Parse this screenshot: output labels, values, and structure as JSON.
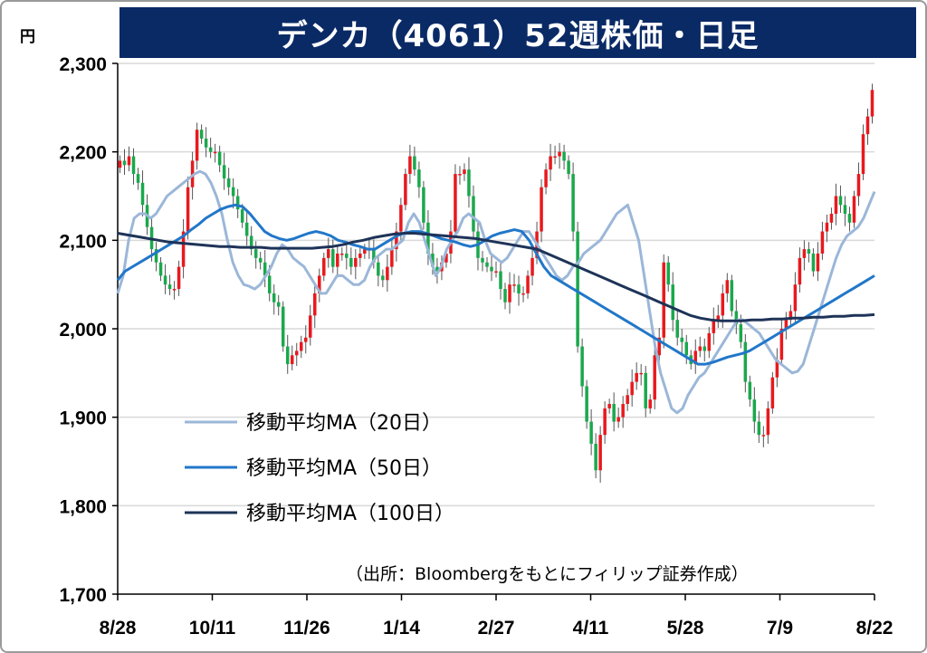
{
  "chart_data": {
    "type": "candlestick",
    "title": "デンカ（4061）52週株価・日足",
    "unit": "円",
    "source": "（出所：Bloombergをもとにフィリップ証券作成）",
    "ylim": [
      1700,
      2300
    ],
    "yticks": [
      1700,
      1800,
      1900,
      2000,
      2100,
      2200,
      2300
    ],
    "ytick_labels": [
      "1,700",
      "1,800",
      "1,900",
      "2,000",
      "2,100",
      "2,200",
      "2,300"
    ],
    "xticks": [
      "8/28",
      "10/11",
      "11/26",
      "1/14",
      "2/27",
      "4/11",
      "5/28",
      "7/9",
      "8/22"
    ],
    "colors": {
      "up": "#e8191e",
      "down": "#1aa84c",
      "grid": "#d9d9d9",
      "ma20": "#9bb7d8",
      "ma50": "#2177c9",
      "ma100": "#1e3358",
      "title_bg": "#0a2a66"
    },
    "candles_close": [
      2190,
      2185,
      2195,
      2175,
      2165,
      2140,
      2115,
      2090,
      2075,
      2060,
      2050,
      2045,
      2045,
      2070,
      2110,
      2160,
      2190,
      2225,
      2215,
      2205,
      2200,
      2200,
      2185,
      2170,
      2160,
      2150,
      2135,
      2120,
      2105,
      2090,
      2080,
      2075,
      2060,
      2040,
      2030,
      2025,
      1980,
      1960,
      1970,
      1975,
      1985,
      1990,
      2015,
      2040,
      2060,
      2080,
      2090,
      2070,
      2085,
      2085,
      2080,
      2070,
      2080,
      2085,
      2090,
      2090,
      2075,
      2060,
      2055,
      2070,
      2090,
      2110,
      2140,
      2175,
      2195,
      2180,
      2160,
      2120,
      2085,
      2070,
      2065,
      2075,
      2085,
      2110,
      2175,
      2175,
      2180,
      2150,
      2110,
      2080,
      2075,
      2070,
      2065,
      2065,
      2045,
      2030,
      2050,
      2050,
      2040,
      2040,
      2060,
      2080,
      2110,
      2160,
      2180,
      2195,
      2195,
      2200,
      2190,
      2175,
      2110,
      1980,
      1935,
      1895,
      1870,
      1840,
      1880,
      1910,
      1915,
      1895,
      1900,
      1915,
      1925,
      1940,
      1950,
      1950,
      1910,
      1920,
      1970,
      1990,
      2075,
      2050,
      2010,
      1990,
      1985,
      1970,
      1960,
      1975,
      1980,
      1975,
      1995,
      2010,
      2015,
      2040,
      2055,
      2020,
      2005,
      1985,
      1940,
      1920,
      1895,
      1880,
      1880,
      1910,
      1945,
      1965,
      2000,
      2010,
      2020,
      2050,
      2080,
      2090,
      2085,
      2065,
      2085,
      2110,
      2120,
      2130,
      2150,
      2140,
      2130,
      2120,
      2150,
      2175,
      2220,
      2240,
      2270
    ],
    "series": [
      {
        "name": "移動平均MA（20日）",
        "values": [
          2040,
          2060,
          2100,
          2125,
          2130,
          2130,
          2125,
          2130,
          2140,
          2150,
          2155,
          2160,
          2165,
          2170,
          2175,
          2178,
          2175,
          2165,
          2150,
          2130,
          2100,
          2075,
          2060,
          2050,
          2048,
          2045,
          2050,
          2060,
          2070,
          2085,
          2095,
          2090,
          2080,
          2075,
          2070,
          2060,
          2050,
          2040,
          2040,
          2050,
          2060,
          2060,
          2055,
          2050,
          2050,
          2055,
          2070,
          2080,
          2085,
          2090,
          2090,
          2095,
          2100,
          2120,
          2130,
          2120,
          2100,
          2080,
          2060,
          2070,
          2090,
          2100,
          2110,
          2125,
          2130,
          2125,
          2120,
          2100,
          2085,
          2080,
          2075,
          2080,
          2090,
          2100,
          2110,
          2110,
          2100,
          2090,
          2080,
          2070,
          2060,
          2055,
          2060,
          2070,
          2075,
          2085,
          2090,
          2095,
          2100,
          2110,
          2120,
          2130,
          2135,
          2140,
          2120,
          2100,
          2060,
          2020,
          1980,
          1950,
          1930,
          1910,
          1905,
          1910,
          1925,
          1935,
          1945,
          1950,
          1960,
          1970,
          1980,
          1990,
          2000,
          2010,
          2010,
          2005,
          2000,
          1995,
          1985,
          1975,
          1965,
          1960,
          1955,
          1950,
          1952,
          1960,
          1980,
          2000,
          2020,
          2040,
          2060,
          2080,
          2095,
          2105,
          2110,
          2115,
          2125,
          2140,
          2155
        ]
      },
      {
        "name": "移動平均MA（50日）",
        "values": [
          2055,
          2065,
          2070,
          2075,
          2080,
          2085,
          2090,
          2095,
          2100,
          2105,
          2112,
          2118,
          2125,
          2130,
          2135,
          2138,
          2140,
          2138,
          2130,
          2120,
          2110,
          2105,
          2102,
          2100,
          2102,
          2105,
          2108,
          2110,
          2108,
          2105,
          2100,
          2098,
          2095,
          2093,
          2090,
          2090,
          2095,
          2100,
          2105,
          2108,
          2110,
          2110,
          2108,
          2105,
          2102,
          2100,
          2098,
          2095,
          2093,
          2095,
          2100,
          2105,
          2108,
          2110,
          2112,
          2110,
          2100,
          2085,
          2070,
          2060,
          2055,
          2050,
          2045,
          2040,
          2035,
          2030,
          2025,
          2020,
          2015,
          2010,
          2005,
          2000,
          1995,
          1990,
          1985,
          1980,
          1975,
          1970,
          1965,
          1960,
          1960,
          1962,
          1965,
          1968,
          1970,
          1972,
          1975,
          1980,
          1985,
          1990,
          1995,
          2000,
          2005,
          2010,
          2015,
          2020,
          2025,
          2030,
          2035,
          2040,
          2045,
          2050,
          2055,
          2060
        ]
      },
      {
        "name": "移動平均MA（100日）",
        "values": [
          2108,
          2106,
          2104,
          2102,
          2100,
          2098,
          2097,
          2096,
          2095,
          2094,
          2093,
          2093,
          2092,
          2092,
          2092,
          2091,
          2091,
          2091,
          2091,
          2091,
          2092,
          2093,
          2095,
          2098,
          2100,
          2103,
          2105,
          2107,
          2108,
          2108,
          2107,
          2106,
          2105,
          2104,
          2103,
          2102,
          2100,
          2098,
          2096,
          2094,
          2092,
          2090,
          2085,
          2080,
          2075,
          2070,
          2065,
          2060,
          2055,
          2050,
          2045,
          2040,
          2035,
          2030,
          2025,
          2020,
          2015,
          2012,
          2010,
          2009,
          2009,
          2009,
          2010,
          2010,
          2011,
          2011,
          2012,
          2012,
          2013,
          2013,
          2014,
          2014,
          2015,
          2015,
          2016
        ]
      }
    ]
  }
}
